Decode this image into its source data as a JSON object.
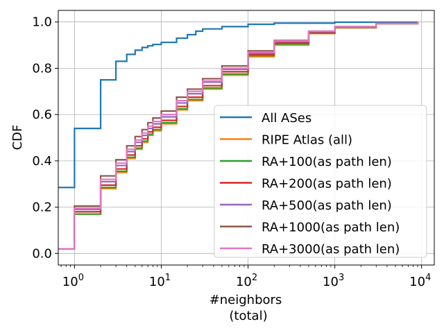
{
  "chart_data": {
    "type": "line",
    "xscale": "log",
    "xlabel_line1": "#neighbors",
    "xlabel_line2": "(total)",
    "ylabel": "CDF",
    "xlim": [
      0.65,
      14000
    ],
    "ylim": [
      -0.05,
      1.05
    ],
    "grid": true,
    "legend_position": "lower-right",
    "x_ticks": [
      {
        "value": 1,
        "base": "10",
        "exp": "0"
      },
      {
        "value": 10,
        "base": "10",
        "exp": "1"
      },
      {
        "value": 100,
        "base": "10",
        "exp": "2"
      },
      {
        "value": 1000,
        "base": "10",
        "exp": "3"
      },
      {
        "value": 10000,
        "base": "10",
        "exp": "4"
      }
    ],
    "y_ticks": [
      {
        "value": 0.0,
        "label": "0.0"
      },
      {
        "value": 0.2,
        "label": "0.2"
      },
      {
        "value": 0.4,
        "label": "0.4"
      },
      {
        "value": 0.6,
        "label": "0.6"
      },
      {
        "value": 0.8,
        "label": "0.8"
      },
      {
        "value": 1.0,
        "label": "1.0"
      }
    ],
    "series": [
      {
        "name": "All ASes",
        "color": "#1f77b4",
        "points": [
          [
            0.65,
            0.285
          ],
          [
            1,
            0.54
          ],
          [
            2,
            0.75
          ],
          [
            3,
            0.83
          ],
          [
            4,
            0.86
          ],
          [
            5,
            0.878
          ],
          [
            6,
            0.89
          ],
          [
            7,
            0.897
          ],
          [
            8,
            0.903
          ],
          [
            10,
            0.912
          ],
          [
            15,
            0.93
          ],
          [
            20,
            0.945
          ],
          [
            25,
            0.96
          ],
          [
            30,
            0.97
          ],
          [
            50,
            0.98
          ],
          [
            100,
            0.99
          ],
          [
            200,
            0.995
          ],
          [
            1000,
            0.999
          ],
          [
            9000,
            1.0
          ]
        ]
      },
      {
        "name": "RIPE Atlas (all)",
        "color": "#ff7f0e",
        "points": [
          [
            0.65,
            0.02
          ],
          [
            1,
            0.17
          ],
          [
            2,
            0.28
          ],
          [
            3,
            0.35
          ],
          [
            4,
            0.41
          ],
          [
            5,
            0.45
          ],
          [
            6,
            0.48
          ],
          [
            7,
            0.51
          ],
          [
            8,
            0.53
          ],
          [
            10,
            0.56
          ],
          [
            15,
            0.62
          ],
          [
            20,
            0.66
          ],
          [
            30,
            0.71
          ],
          [
            50,
            0.77
          ],
          [
            100,
            0.85
          ],
          [
            200,
            0.9
          ],
          [
            500,
            0.95
          ],
          [
            1000,
            0.975
          ],
          [
            3000,
            0.993
          ],
          [
            9000,
            1.0
          ]
        ]
      },
      {
        "name": "RA+100(as path len)",
        "color": "#2ca02c",
        "points": [
          [
            0.65,
            0.02
          ],
          [
            1,
            0.17
          ],
          [
            2,
            0.285
          ],
          [
            3,
            0.355
          ],
          [
            4,
            0.415
          ],
          [
            5,
            0.455
          ],
          [
            6,
            0.485
          ],
          [
            7,
            0.515
          ],
          [
            8,
            0.535
          ],
          [
            10,
            0.565
          ],
          [
            15,
            0.625
          ],
          [
            20,
            0.665
          ],
          [
            30,
            0.715
          ],
          [
            50,
            0.775
          ],
          [
            100,
            0.855
          ],
          [
            200,
            0.905
          ],
          [
            500,
            0.952
          ],
          [
            1000,
            0.976
          ],
          [
            3000,
            0.993
          ],
          [
            9000,
            1.0
          ]
        ]
      },
      {
        "name": "RA+200(as path len)",
        "color": "#d62728",
        "points": [
          [
            0.65,
            0.02
          ],
          [
            1,
            0.18
          ],
          [
            2,
            0.295
          ],
          [
            3,
            0.365
          ],
          [
            4,
            0.425
          ],
          [
            5,
            0.465
          ],
          [
            6,
            0.495
          ],
          [
            7,
            0.525
          ],
          [
            8,
            0.545
          ],
          [
            10,
            0.575
          ],
          [
            15,
            0.635
          ],
          [
            20,
            0.675
          ],
          [
            30,
            0.725
          ],
          [
            50,
            0.785
          ],
          [
            100,
            0.86
          ],
          [
            200,
            0.91
          ],
          [
            500,
            0.955
          ],
          [
            1000,
            0.977
          ],
          [
            3000,
            0.993
          ],
          [
            9000,
            1.0
          ]
        ]
      },
      {
        "name": "RA+500(as path len)",
        "color": "#9467bd",
        "points": [
          [
            0.65,
            0.02
          ],
          [
            1,
            0.19
          ],
          [
            2,
            0.31
          ],
          [
            3,
            0.38
          ],
          [
            4,
            0.44
          ],
          [
            5,
            0.48
          ],
          [
            6,
            0.51
          ],
          [
            7,
            0.54
          ],
          [
            8,
            0.56
          ],
          [
            10,
            0.59
          ],
          [
            15,
            0.65
          ],
          [
            20,
            0.69
          ],
          [
            30,
            0.74
          ],
          [
            50,
            0.795
          ],
          [
            100,
            0.865
          ],
          [
            200,
            0.915
          ],
          [
            500,
            0.958
          ],
          [
            1000,
            0.978
          ],
          [
            3000,
            0.994
          ],
          [
            9000,
            1.0
          ]
        ]
      },
      {
        "name": "RA+1000(as path len)",
        "color": "#8c564b",
        "points": [
          [
            0.65,
            0.02
          ],
          [
            1,
            0.205
          ],
          [
            2,
            0.335
          ],
          [
            3,
            0.405
          ],
          [
            4,
            0.465
          ],
          [
            5,
            0.505
          ],
          [
            6,
            0.535
          ],
          [
            7,
            0.565
          ],
          [
            8,
            0.585
          ],
          [
            10,
            0.615
          ],
          [
            15,
            0.675
          ],
          [
            20,
            0.71
          ],
          [
            30,
            0.755
          ],
          [
            50,
            0.81
          ],
          [
            100,
            0.875
          ],
          [
            200,
            0.92
          ],
          [
            500,
            0.96
          ],
          [
            1000,
            0.98
          ],
          [
            3000,
            0.994
          ],
          [
            9000,
            1.0
          ]
        ]
      },
      {
        "name": "RA+3000(as path len)",
        "color": "#e377c2",
        "points": [
          [
            0.65,
            0.02
          ],
          [
            1,
            0.195
          ],
          [
            2,
            0.32
          ],
          [
            3,
            0.39
          ],
          [
            4,
            0.45
          ],
          [
            5,
            0.49
          ],
          [
            6,
            0.52
          ],
          [
            7,
            0.55
          ],
          [
            8,
            0.57
          ],
          [
            10,
            0.6
          ],
          [
            15,
            0.66
          ],
          [
            20,
            0.7
          ],
          [
            30,
            0.745
          ],
          [
            50,
            0.8
          ],
          [
            100,
            0.87
          ],
          [
            200,
            0.918
          ],
          [
            500,
            0.96
          ],
          [
            1000,
            0.979
          ],
          [
            3000,
            0.994
          ],
          [
            9000,
            1.0
          ]
        ]
      }
    ]
  }
}
